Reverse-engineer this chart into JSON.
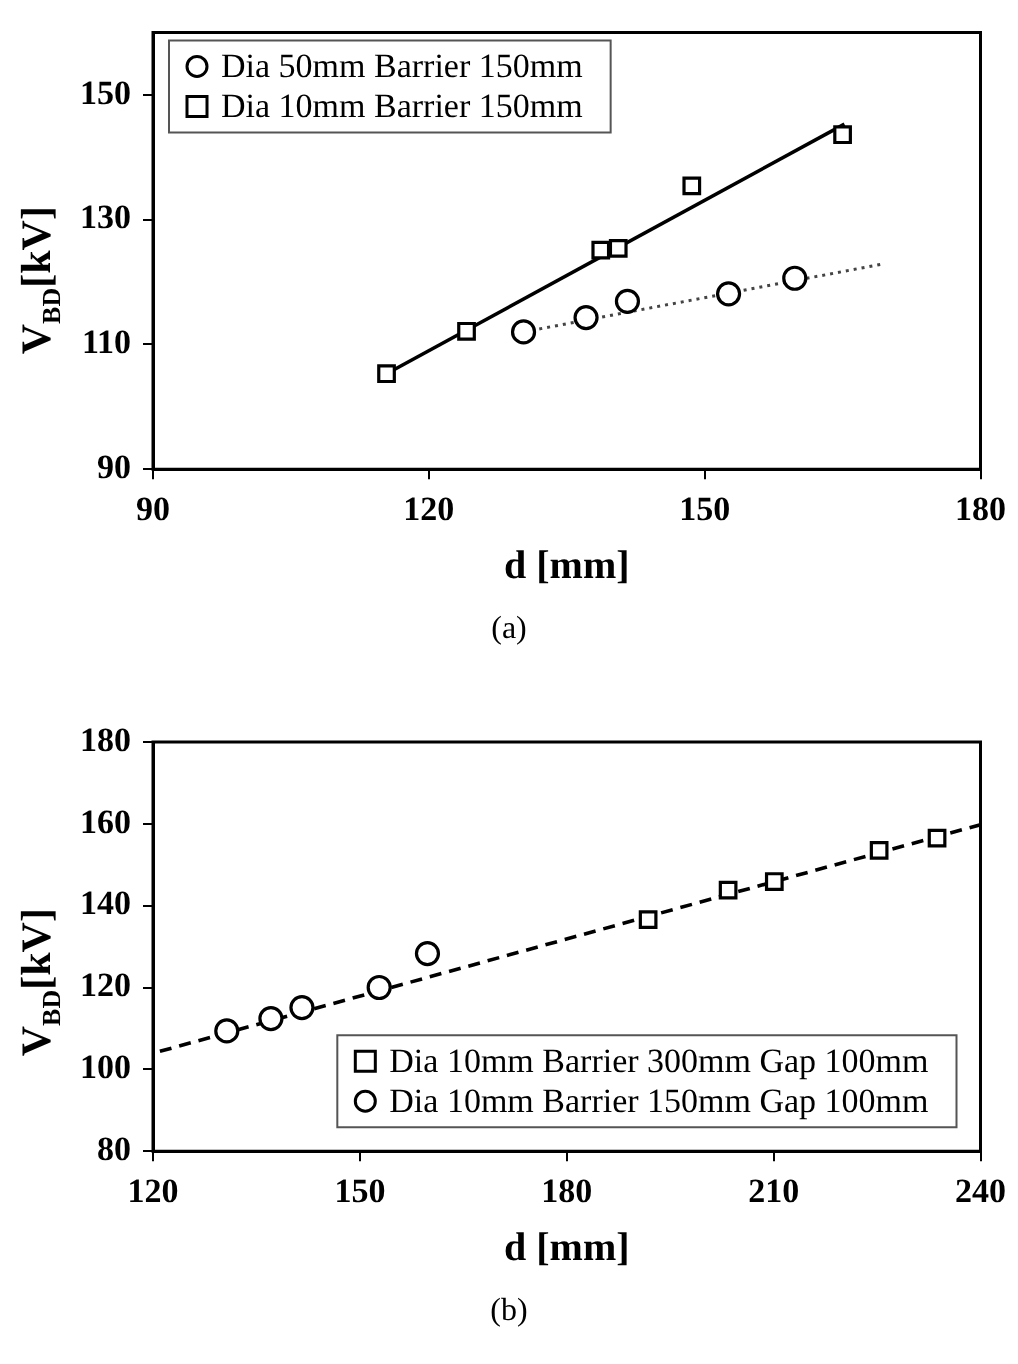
{
  "chart_data": [
    {
      "type": "scatter",
      "xlabel": "d [mm]",
      "ylabel": "V$_{BD}$[kV]",
      "annotations": [
        "(a)"
      ],
      "xlim": [
        90,
        180
      ],
      "xticks": [
        90,
        120,
        150,
        180
      ],
      "ylim": [
        90,
        160
      ],
      "yticks": [
        90,
        110,
        130,
        150
      ],
      "grid": false,
      "legend": "top left",
      "series": [
        {
          "name": "Dia 50mm Barrier 150mm",
          "color": "#000000",
          "marker": "circle",
          "x": [
            130.3,
            137.1,
            141.6,
            152.6,
            159.8
          ],
          "values": [
            112.0,
            114.3,
            116.9,
            118.1,
            120.6
          ]
        },
        {
          "name": "Dia 10mm Barrier 150mm",
          "color": "#000000",
          "marker": "square",
          "x": [
            115.4,
            124.1,
            138.7,
            140.6,
            148.6,
            165.0
          ],
          "values": [
            105.3,
            112.1,
            125.1,
            125.4,
            135.4,
            143.6
          ]
        },
        {
          "type": "line",
          "color": "#000000",
          "line_style": "solid",
          "x": [
            115.4,
            165.2
          ],
          "values": [
            105.3,
            145.3
          ]
        },
        {
          "type": "line",
          "color": "#444444",
          "line_style": "dotted",
          "x": [
            130.3,
            169.4
          ],
          "values": [
            112.0,
            122.9
          ]
        }
      ]
    },
    {
      "type": "scatter",
      "xlabel": "d [mm]",
      "ylabel": "V$_{BD}$[kV]",
      "annotations": [
        "(b)"
      ],
      "xlim": [
        120,
        240
      ],
      "xticks": [
        120,
        150,
        180,
        210,
        240
      ],
      "ylim": [
        80,
        180
      ],
      "yticks": [
        80,
        100,
        120,
        140,
        160,
        180
      ],
      "grid": false,
      "legend": "bottom right",
      "series": [
        {
          "name": "Dia 10mm Barrier 300mm Gap 100mm",
          "color": "#000000",
          "marker": "square",
          "x": [
            191.8,
            203.4,
            210.1,
            225.3,
            233.7
          ],
          "values": [
            136.6,
            143.8,
            145.9,
            153.5,
            156.5
          ]
        },
        {
          "name": "Dia 10mm Barrier 150mm Gap 100mm",
          "color": "#000000",
          "marker": "circle",
          "x": [
            130.7,
            137.1,
            141.6,
            152.8,
            159.8
          ],
          "values": [
            109.4,
            112.4,
            115.1,
            120.0,
            128.3
          ]
        },
        {
          "type": "line",
          "color": "#000000",
          "line_style": "dashed",
          "x": [
            121,
            240
          ],
          "values": [
            104.4,
            159.8
          ]
        }
      ]
    }
  ]
}
